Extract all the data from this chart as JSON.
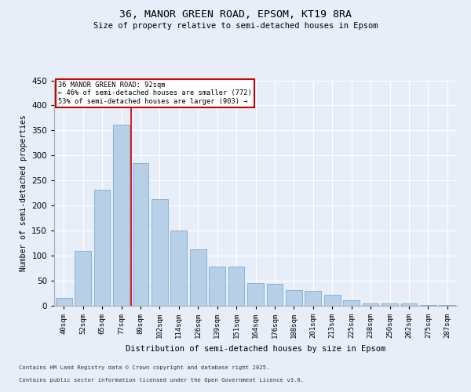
{
  "title1": "36, MANOR GREEN ROAD, EPSOM, KT19 8RA",
  "title2": "Size of property relative to semi-detached houses in Epsom",
  "xlabel": "Distribution of semi-detached houses by size in Epsom",
  "ylabel": "Number of semi-detached properties",
  "categories": [
    "40sqm",
    "52sqm",
    "65sqm",
    "77sqm",
    "89sqm",
    "102sqm",
    "114sqm",
    "126sqm",
    "139sqm",
    "151sqm",
    "164sqm",
    "176sqm",
    "188sqm",
    "201sqm",
    "213sqm",
    "225sqm",
    "238sqm",
    "250sqm",
    "262sqm",
    "275sqm",
    "287sqm"
  ],
  "values": [
    15,
    109,
    231,
    362,
    285,
    213,
    151,
    112,
    78,
    78,
    45,
    44,
    32,
    30,
    22,
    11,
    4,
    4,
    5,
    1,
    1
  ],
  "bar_color": "#b8cfe8",
  "bar_edge_color": "#7aacd4",
  "vline_color": "#cc0000",
  "annotation_title": "36 MANOR GREEN ROAD: 92sqm",
  "annotation_line2": "← 46% of semi-detached houses are smaller (772)",
  "annotation_line3": "53% of semi-detached houses are larger (903) →",
  "annotation_box_color": "#cc0000",
  "ylim": [
    0,
    450
  ],
  "yticks": [
    0,
    50,
    100,
    150,
    200,
    250,
    300,
    350,
    400,
    450
  ],
  "footnote1": "Contains HM Land Registry data © Crown copyright and database right 2025.",
  "footnote2": "Contains public sector information licensed under the Open Government Licence v3.0.",
  "bg_color": "#e8eef8",
  "plot_bg_color": "#e8eef8"
}
